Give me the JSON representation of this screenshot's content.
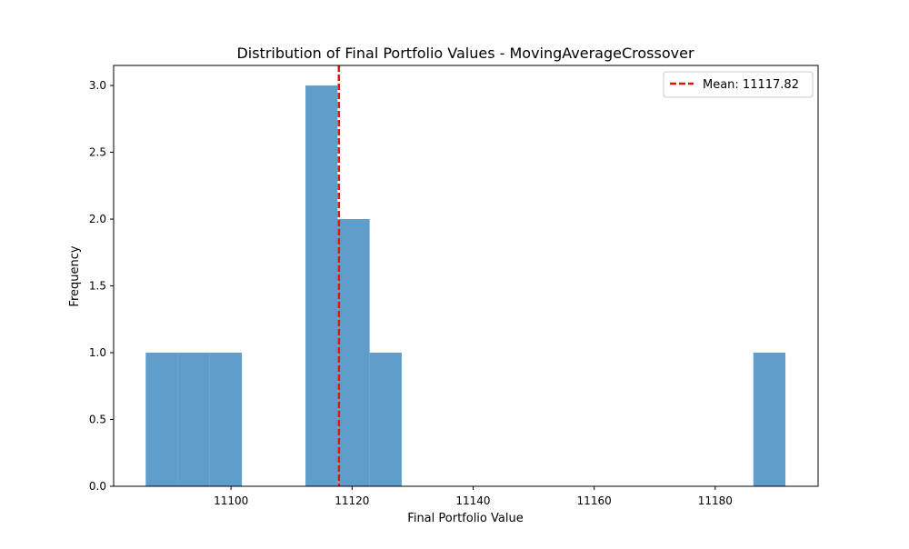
{
  "chart_data": {
    "type": "bar",
    "title": "Distribution of Final Portfolio Values - MovingAverageCrossover",
    "xlabel": "Final Portfolio Value",
    "ylabel": "Frequency",
    "xlim": [
      11080.6,
      11197.0
    ],
    "ylim": [
      0,
      3.15
    ],
    "x_ticks": [
      11100,
      11120,
      11140,
      11160,
      11180
    ],
    "x_tick_labels": [
      "11100",
      "11120",
      "11140",
      "11160",
      "11180"
    ],
    "y_ticks": [
      0.0,
      0.5,
      1.0,
      1.5,
      2.0,
      2.5,
      3.0
    ],
    "y_tick_labels": [
      "0.0",
      "0.5",
      "1.0",
      "1.5",
      "2.0",
      "2.5",
      "3.0"
    ],
    "bins": [
      {
        "x0": 11085.9,
        "x1": 11091.2,
        "count": 1
      },
      {
        "x0": 11091.2,
        "x1": 11096.5,
        "count": 1
      },
      {
        "x0": 11096.5,
        "x1": 11101.8,
        "count": 1
      },
      {
        "x0": 11101.8,
        "x1": 11107.0,
        "count": 0
      },
      {
        "x0": 11107.0,
        "x1": 11112.3,
        "count": 0
      },
      {
        "x0": 11112.3,
        "x1": 11117.6,
        "count": 3
      },
      {
        "x0": 11117.6,
        "x1": 11122.9,
        "count": 2
      },
      {
        "x0": 11122.9,
        "x1": 11128.2,
        "count": 1
      },
      {
        "x0": 11128.2,
        "x1": 11133.5,
        "count": 0
      },
      {
        "x0": 11133.5,
        "x1": 11138.8,
        "count": 0
      },
      {
        "x0": 11138.8,
        "x1": 11144.0,
        "count": 0
      },
      {
        "x0": 11144.0,
        "x1": 11149.3,
        "count": 0
      },
      {
        "x0": 11149.3,
        "x1": 11154.6,
        "count": 0
      },
      {
        "x0": 11154.6,
        "x1": 11159.9,
        "count": 0
      },
      {
        "x0": 11159.9,
        "x1": 11165.2,
        "count": 0
      },
      {
        "x0": 11165.2,
        "x1": 11170.5,
        "count": 0
      },
      {
        "x0": 11170.5,
        "x1": 11175.7,
        "count": 0
      },
      {
        "x0": 11175.7,
        "x1": 11181.0,
        "count": 0
      },
      {
        "x0": 11181.0,
        "x1": 11186.3,
        "count": 0
      },
      {
        "x0": 11186.3,
        "x1": 11191.6,
        "count": 1
      }
    ],
    "bar_color": "#5f9ecb",
    "mean": {
      "value": 11117.82,
      "label": "Mean: 11117.82",
      "color": "#e3120b",
      "style": "dashed"
    },
    "legend": {
      "location": "upper right"
    },
    "grid": false
  }
}
